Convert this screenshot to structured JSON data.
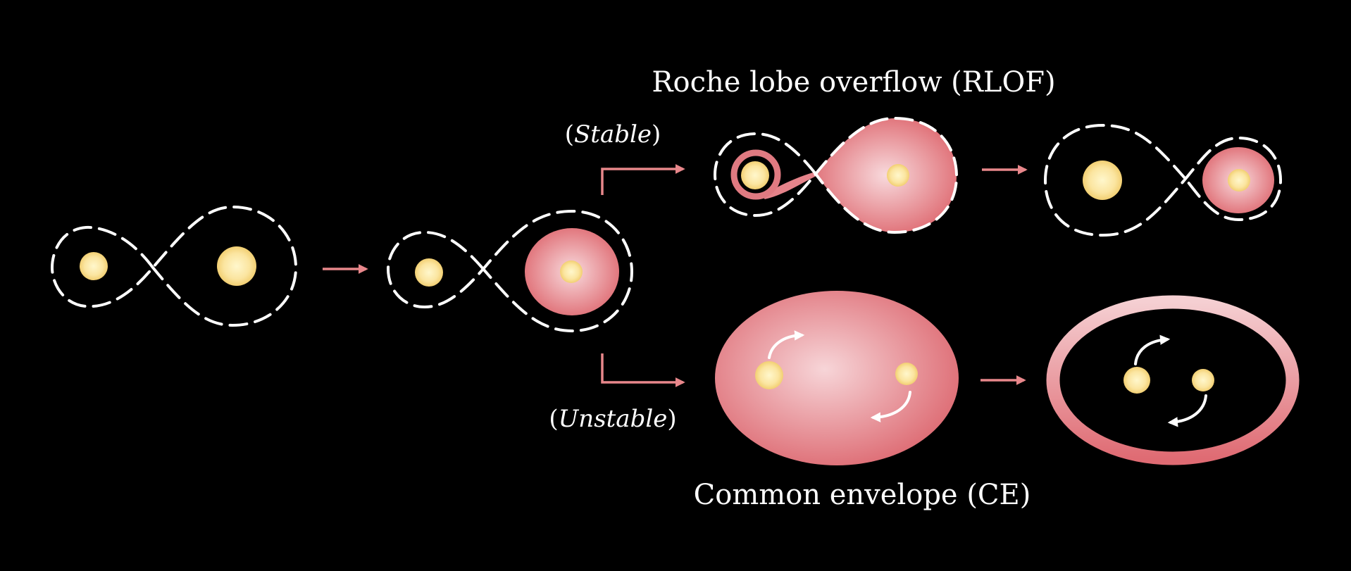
{
  "labels": {
    "rlof": "Roche lobe overflow (RLOF)",
    "ce": "Common envelope (CE)",
    "stable": "Stable",
    "unstable": "Unstable"
  },
  "colors": {
    "background": "#000000",
    "arrow": "#e8878b",
    "envelope_outer": "#e06a72",
    "envelope_inner": "#f7d3d6",
    "star_core": "#fff3b8",
    "star_edge": "#f5d57a",
    "lobe_outline": "#ffffff"
  }
}
